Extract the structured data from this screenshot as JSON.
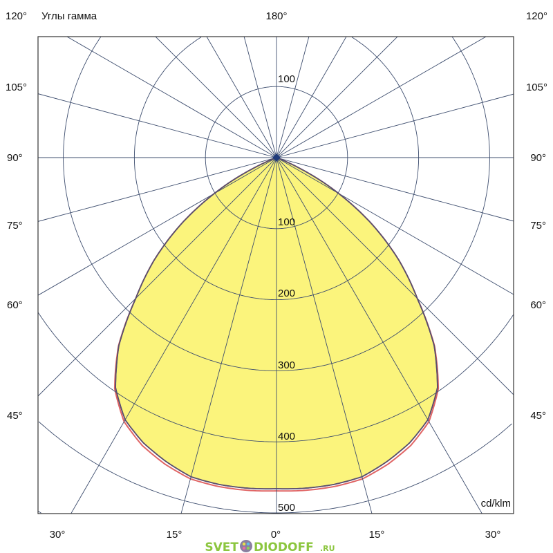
{
  "chart_data": {
    "type": "polar",
    "title": "Углы гамма",
    "unit_label": "cd/klm",
    "radial_ticks": [
      100,
      200,
      300,
      400,
      500
    ],
    "radial_grid": [
      100,
      200,
      300,
      400,
      500,
      600
    ],
    "angle_step_deg": 15,
    "grid": true,
    "top_label": "180°",
    "left_angle_labels": [
      "120°",
      "105°",
      "90°",
      "75°",
      "60°",
      "45°"
    ],
    "right_angle_labels": [
      "120°",
      "105°",
      "90°",
      "75°",
      "60°",
      "45°"
    ],
    "bottom_angle_labels": [
      "30°",
      "15°",
      "0°",
      "15°",
      "30°"
    ],
    "radial_tick_labels": {
      "top": "100",
      "t100": "100",
      "t200": "200",
      "t300": "300",
      "t400": "400",
      "t500": "500"
    },
    "series": [
      {
        "color": "#5a4f6e",
        "fill": "#fbf47c",
        "gamma_deg": [
          0,
          5,
          10,
          15,
          20,
          25,
          30,
          35,
          40,
          45,
          50,
          55,
          60,
          62.5,
          65,
          67.5,
          70,
          90
        ],
        "intensity": [
          466,
          467,
          467,
          465,
          455,
          443,
          426,
          395,
          345,
          280,
          225,
          165,
          101,
          70,
          38,
          12,
          0,
          0
        ]
      },
      {
        "color": "#e06464",
        "gamma_deg": [
          0,
          5,
          10,
          15,
          20,
          25,
          30,
          35,
          40,
          45,
          50,
          55,
          60,
          62.5,
          65,
          67.5,
          70,
          90
        ],
        "intensity": [
          469,
          470,
          470,
          468,
          459,
          447,
          429,
          397,
          346,
          280,
          225,
          165,
          101,
          70,
          38,
          12,
          0,
          0
        ]
      }
    ],
    "colors": {
      "grid": "#3d4d6e",
      "center_marker": "#1f3a7a"
    }
  },
  "watermark": {
    "text": "SVET",
    "text2": "DIODOFF",
    "suffix": ".RU"
  }
}
